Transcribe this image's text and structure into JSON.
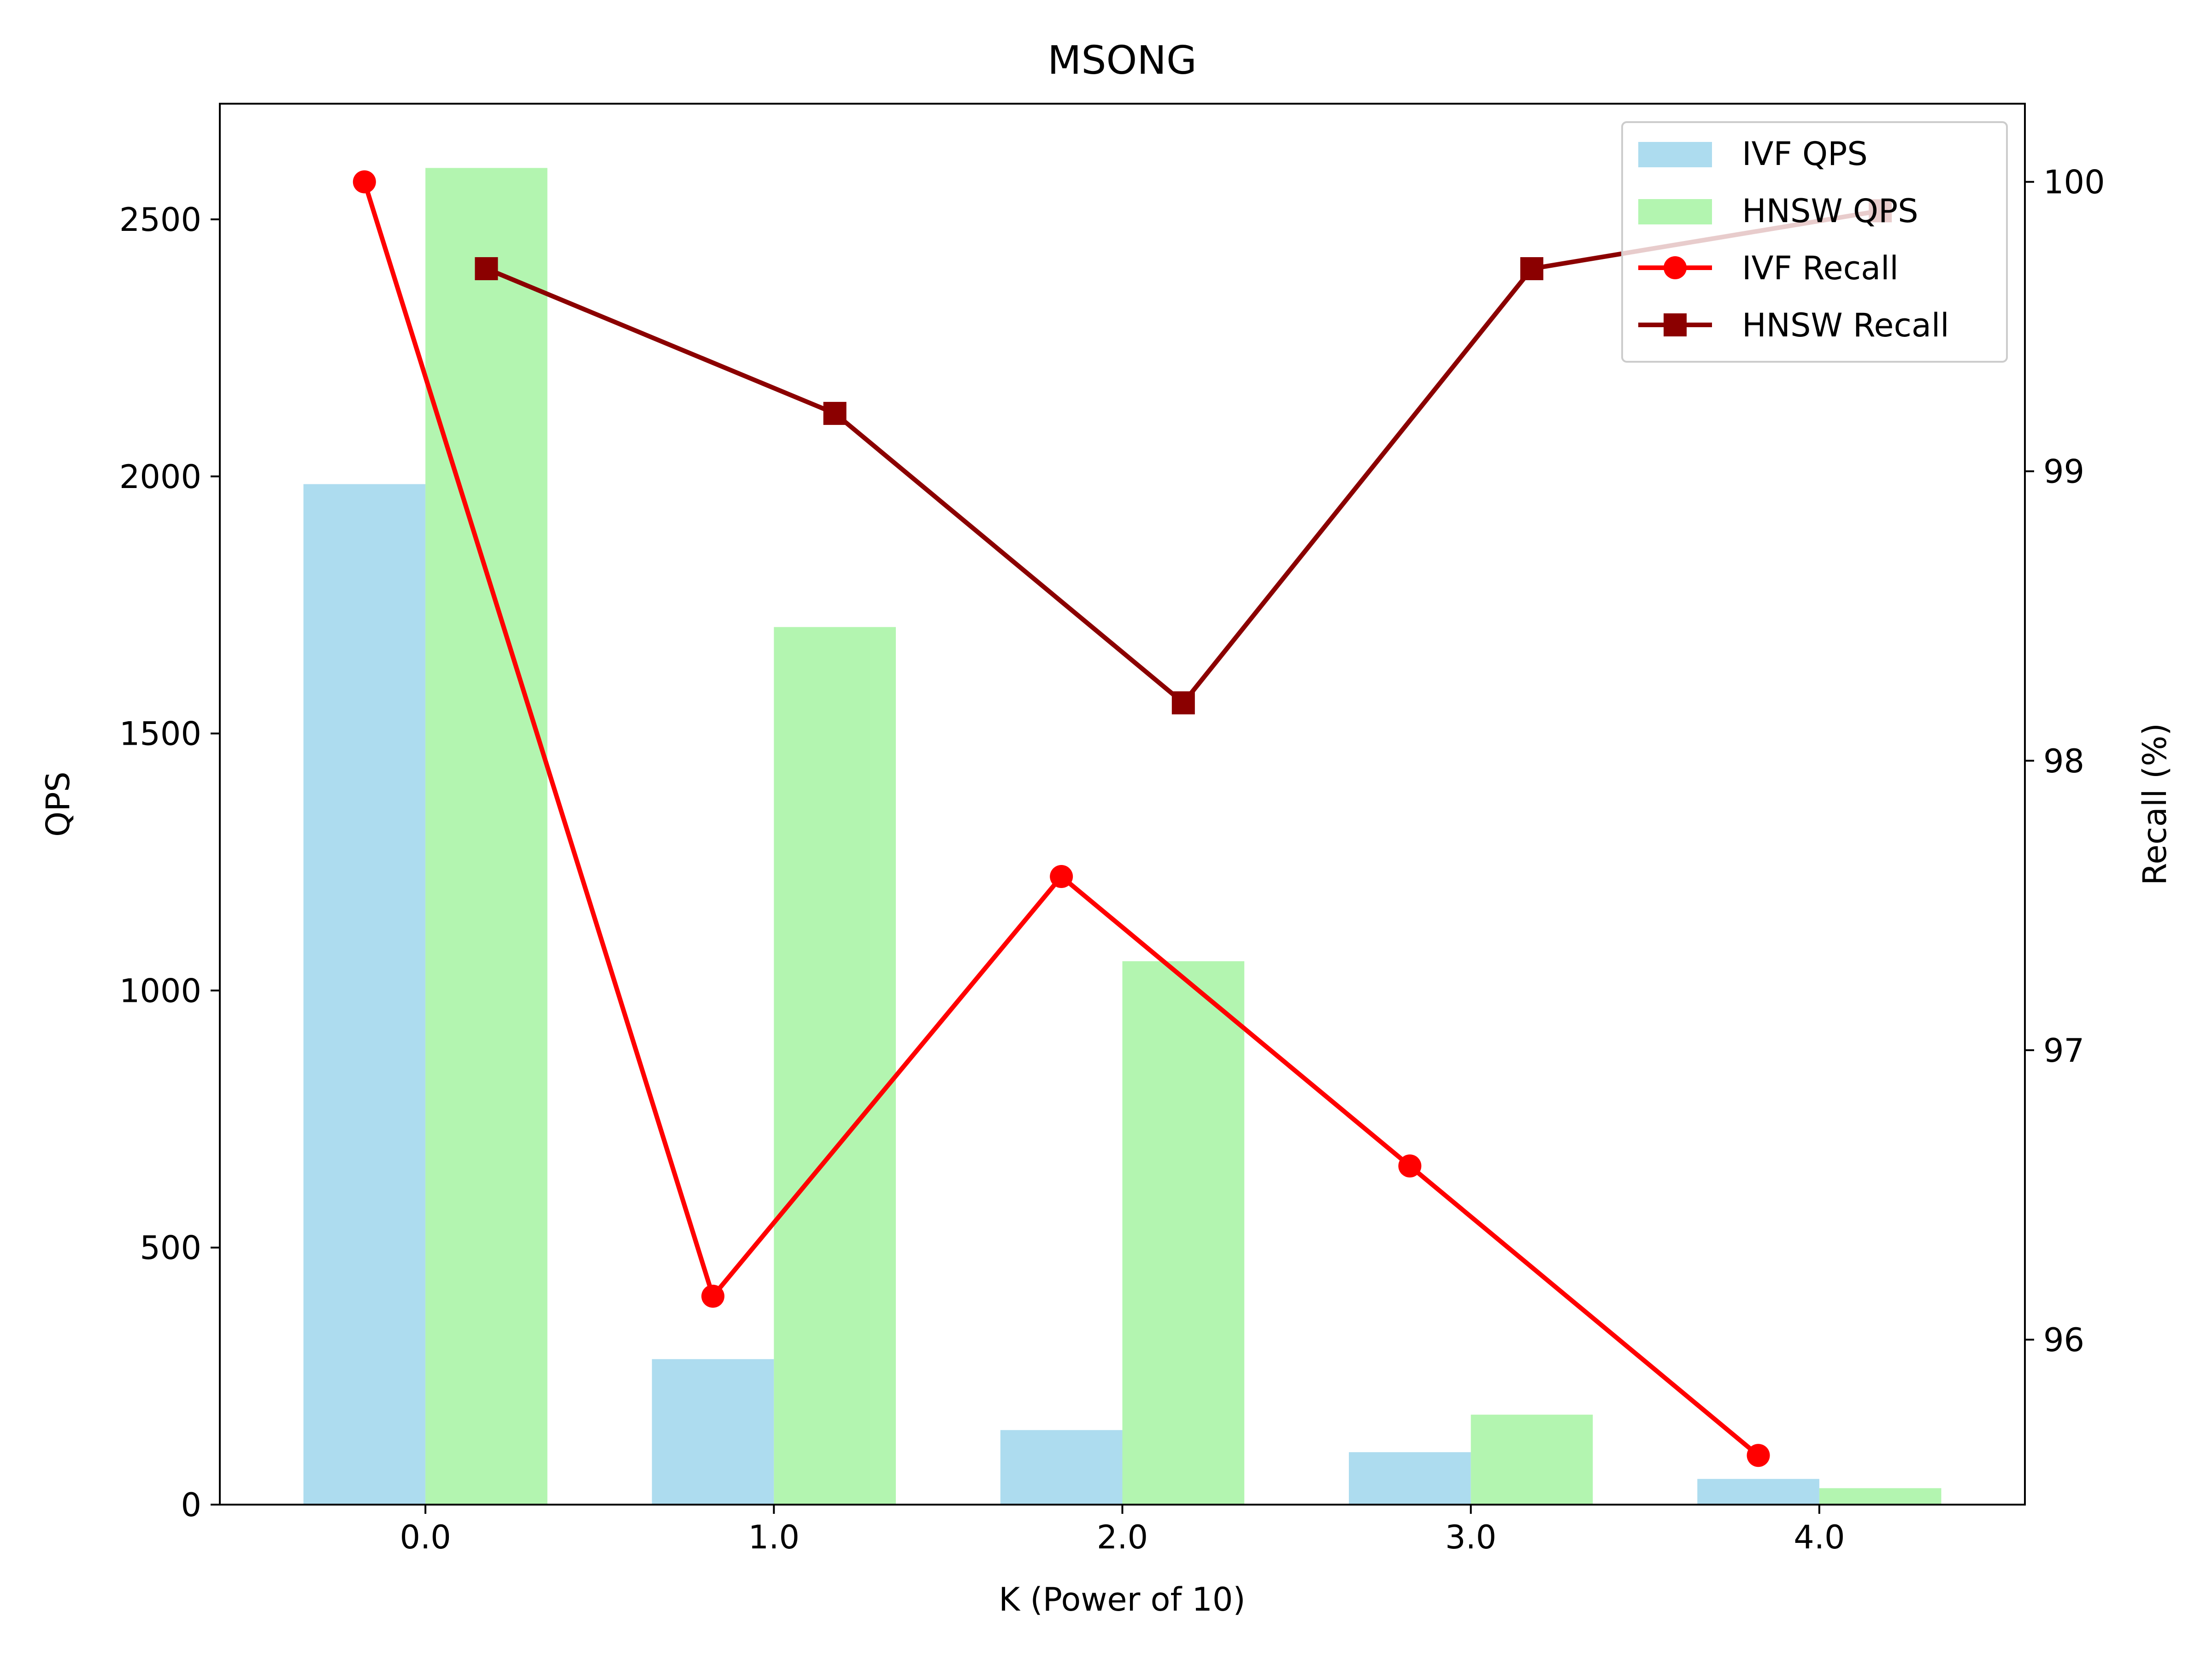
{
  "chart_data": {
    "type": "bar",
    "title": "MSONG",
    "xlabel": "K (Power of 10)",
    "ylabel": "QPS",
    "y2label": "Recall (%)",
    "x": [
      0,
      1,
      2,
      3,
      4
    ],
    "x_tick_labels": [
      "0.0",
      "1.0",
      "2.0",
      "3.0",
      "4.0"
    ],
    "xlim": [
      -0.59,
      4.59
    ],
    "ylim": [
      0,
      2725
    ],
    "y_ticks": [
      0,
      500,
      1000,
      1500,
      2000,
      2500
    ],
    "y2lim": [
      95.43,
      100.27
    ],
    "y2_ticks": [
      96,
      97,
      98,
      99,
      100
    ],
    "bar_series": [
      {
        "name": "IVF QPS",
        "values": [
          1985,
          283,
          145,
          102,
          50
        ],
        "color": "#ADDCEF",
        "offset": -0.175,
        "width": 0.35
      },
      {
        "name": "HNSW QPS",
        "values": [
          2600,
          1707,
          1057,
          175,
          32
        ],
        "color": "#B3F5B0",
        "offset": 0.175,
        "width": 0.35
      }
    ],
    "line_series": [
      {
        "name": "IVF Recall",
        "values": [
          100.0,
          96.15,
          97.6,
          96.6,
          95.6
        ],
        "color": "#FF0000",
        "marker": "circle",
        "offset": -0.175
      },
      {
        "name": "HNSW Recall",
        "values": [
          99.7,
          99.2,
          98.2,
          99.7,
          99.9
        ],
        "color": "#8B0000",
        "marker": "square",
        "offset": 0.175
      }
    ],
    "grid": false,
    "legend_position": "upper right"
  }
}
